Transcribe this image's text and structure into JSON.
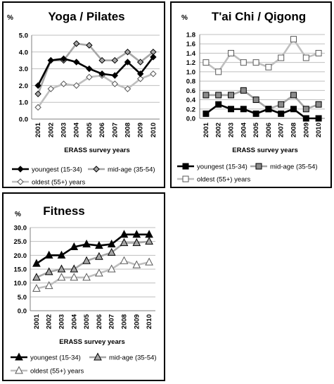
{
  "chart_data": [
    {
      "id": "yoga",
      "type": "line",
      "title": "Yoga / Pilates",
      "ylabel": "%",
      "xlabel": "ERASS survey years",
      "categories": [
        "2001",
        "2002",
        "2003",
        "2004",
        "2005",
        "2006",
        "2007",
        "2008",
        "2009",
        "2010"
      ],
      "ylim": [
        0,
        5
      ],
      "yticks": [
        0,
        1,
        2,
        3,
        4,
        5
      ],
      "ytick_labels": [
        "0.0",
        "1.0",
        "2.0",
        "3.0",
        "4.0",
        "5.0"
      ],
      "grid": true,
      "legend": "bottom",
      "series": [
        {
          "name": "youngest (15-34)",
          "marker": "diamond",
          "line_color": "#000000",
          "marker_fill": "#000000",
          "values": [
            2.0,
            3.5,
            3.6,
            3.4,
            3.0,
            2.7,
            2.6,
            3.4,
            2.7,
            3.7
          ]
        },
        {
          "name": "mid-age (35-54)",
          "marker": "diamond",
          "line_color": "#a6a6a6",
          "marker_fill": "#a6a6a6",
          "values": [
            1.5,
            3.5,
            3.5,
            4.5,
            4.4,
            3.5,
            3.5,
            4.0,
            3.4,
            4.0
          ]
        },
        {
          "name": "oldest (55+) years",
          "marker": "diamond",
          "line_color": "#bfbfbf",
          "marker_fill": "#ffffff",
          "values": [
            0.7,
            1.8,
            2.1,
            2.0,
            2.5,
            2.6,
            2.1,
            1.8,
            2.4,
            2.7
          ]
        }
      ]
    },
    {
      "id": "taichi",
      "type": "line",
      "title": "T'ai Chi / Qigong",
      "ylabel": "%",
      "xlabel": "ERASS survey years",
      "categories": [
        "2001",
        "2002",
        "2003",
        "2004",
        "2005",
        "2006",
        "2007",
        "2008",
        "2009",
        "2010"
      ],
      "ylim": [
        0,
        1.8
      ],
      "yticks": [
        0,
        0.2,
        0.4,
        0.6,
        0.8,
        1.0,
        1.2,
        1.4,
        1.6,
        1.8
      ],
      "ytick_labels": [
        "0.0",
        "0.2",
        "0.4",
        "0.6",
        "0.8",
        "1.0",
        "1.2",
        "1.4",
        "1.6",
        "1.8"
      ],
      "grid": true,
      "legend": "bottom",
      "series": [
        {
          "name": "youngest (15-34)",
          "marker": "square",
          "line_color": "#000000",
          "marker_fill": "#000000",
          "values": [
            0.1,
            0.3,
            0.2,
            0.2,
            0.1,
            0.2,
            0.1,
            0.2,
            0.0,
            0.0
          ]
        },
        {
          "name": "mid-age (35-54)",
          "marker": "square",
          "line_color": "#a6a6a6",
          "marker_fill": "#8c8c8c",
          "values": [
            0.5,
            0.5,
            0.5,
            0.6,
            0.4,
            0.2,
            0.3,
            0.5,
            0.2,
            0.3
          ]
        },
        {
          "name": "oldest (55+) years",
          "marker": "square",
          "line_color": "#bfbfbf",
          "marker_fill": "#ffffff",
          "values": [
            1.2,
            1.0,
            1.4,
            1.2,
            1.2,
            1.1,
            1.3,
            1.7,
            1.3,
            1.4
          ]
        }
      ]
    },
    {
      "id": "fitness",
      "type": "line",
      "title": "Fitness",
      "ylabel": "%",
      "xlabel": "ERASS survey years",
      "categories": [
        "2001",
        "2002",
        "2003",
        "2004",
        "2005",
        "2006",
        "2007",
        "2008",
        "2009",
        "2010"
      ],
      "ylim": [
        0,
        30
      ],
      "yticks": [
        0,
        5,
        10,
        15,
        20,
        25,
        30
      ],
      "ytick_labels": [
        "0.0",
        "5.0",
        "10.0",
        "15.0",
        "20.0",
        "25.0",
        "30.0"
      ],
      "grid": true,
      "legend": "bottom",
      "series": [
        {
          "name": "youngest (15-34)",
          "marker": "triangle",
          "line_color": "#000000",
          "marker_fill": "#000000",
          "values": [
            17.0,
            20.0,
            20.0,
            23.0,
            24.0,
            23.5,
            24.0,
            27.5,
            27.5,
            27.5
          ]
        },
        {
          "name": "mid-age (35-54)",
          "marker": "triangle",
          "line_color": "#a6a6a6",
          "marker_fill": "#a6a6a6",
          "values": [
            12.0,
            14.0,
            15.0,
            15.0,
            18.0,
            19.5,
            21.0,
            24.5,
            24.5,
            25.0
          ]
        },
        {
          "name": "oldest (55+) years",
          "marker": "triangle",
          "line_color": "#bfbfbf",
          "marker_fill": "#ffffff",
          "values": [
            8.0,
            9.0,
            12.0,
            12.0,
            12.0,
            13.5,
            15.0,
            18.0,
            16.5,
            17.5
          ]
        }
      ]
    }
  ]
}
